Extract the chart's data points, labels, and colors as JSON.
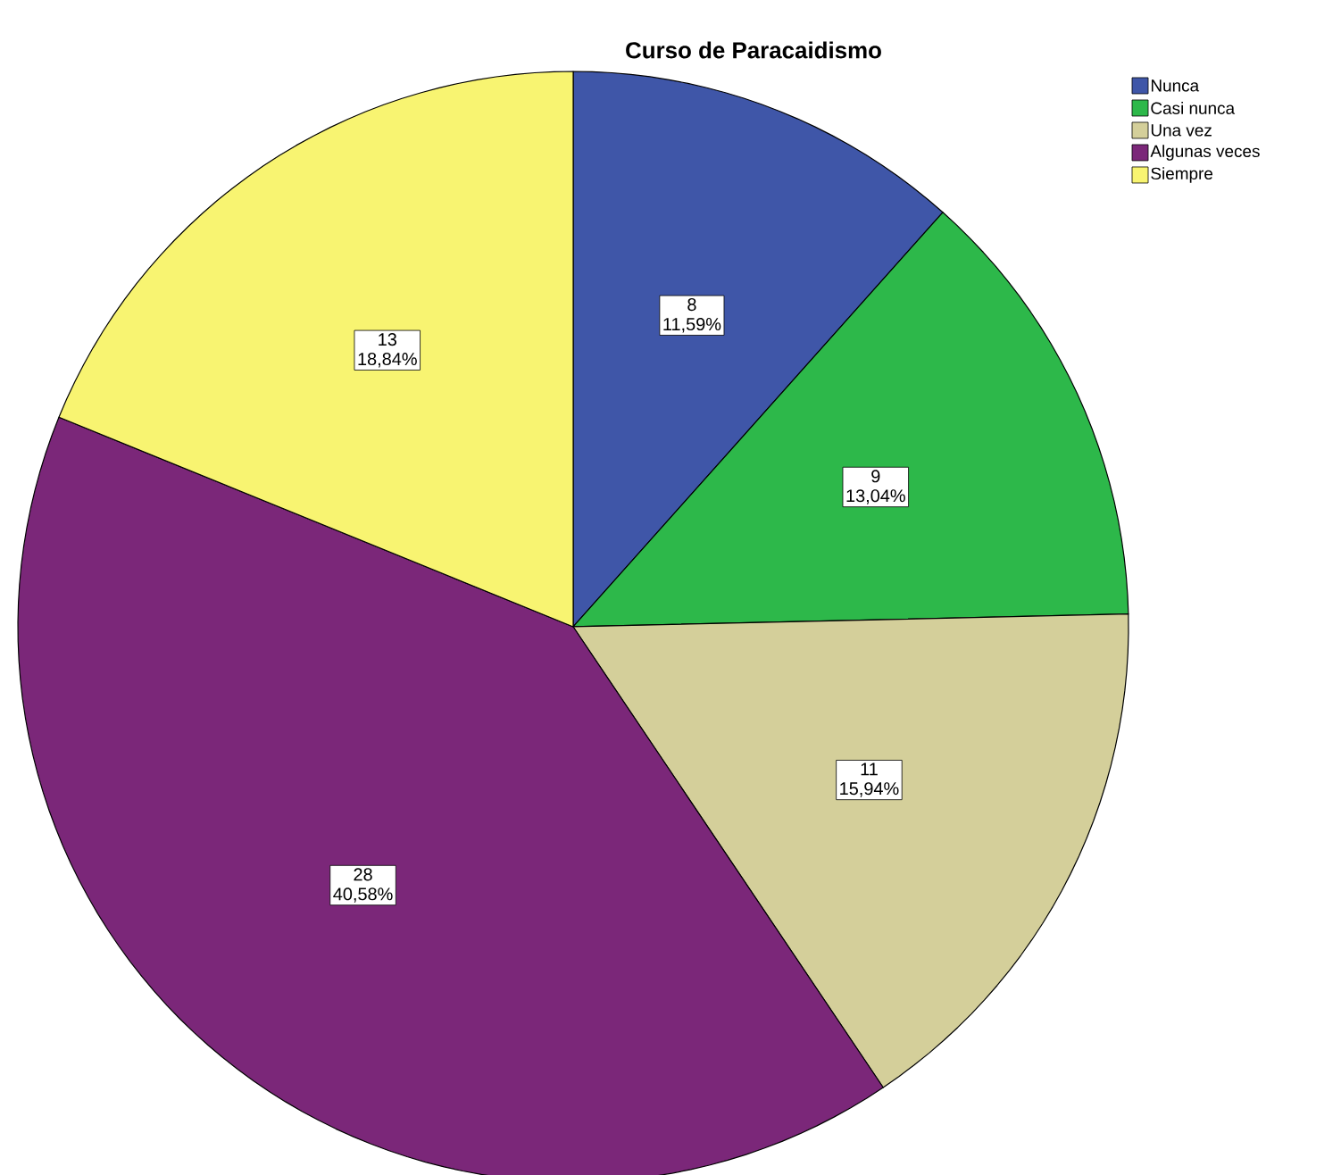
{
  "chart_data": {
    "type": "pie",
    "title": "Curso de Paracaidismo",
    "categories": [
      "Nunca",
      "Casi nunca",
      "Una vez",
      "Algunas veces",
      "Siempre"
    ],
    "values": [
      11.59,
      13.04,
      15.94,
      40.58,
      18.84
    ],
    "value_labels": [
      "11,59%",
      "13,04%",
      "15,94%",
      "40,58%",
      "18,84%"
    ],
    "annotations": [
      "8",
      "9",
      "11",
      "28",
      "13"
    ],
    "colors": [
      "#3f56a8",
      "#2db84a",
      "#d4cf9a",
      "#7b2779",
      "#f8f471"
    ],
    "legend": "top right"
  }
}
